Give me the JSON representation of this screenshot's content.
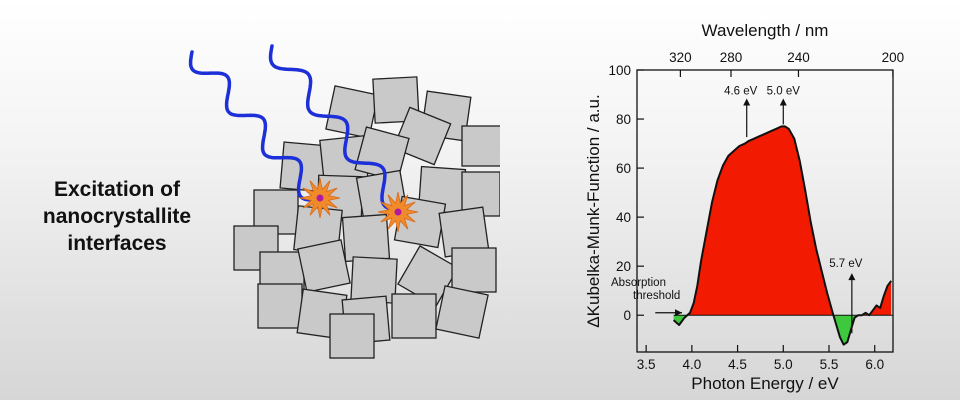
{
  "left_panel": {
    "caption_lines": [
      "Excitation of",
      "nanocrystallite",
      "interfaces"
    ]
  },
  "colors": {
    "positive_fill": "#f21a00",
    "negative_fill": "#3ec83e",
    "photon_wave": "#1c2fd8",
    "crystal_fill": "#c9c9c9",
    "crystal_stroke": "#222222",
    "spark": "#f08a2a"
  },
  "chart_data": {
    "type": "area",
    "title": "",
    "xlabel": "Photon Energy / eV",
    "ylabel": "ΔKubelka-Munk-Function / a.u.",
    "x2label": "Wavelength / nm",
    "xlim": [
      3.4,
      6.2
    ],
    "ylim": [
      -15,
      100
    ],
    "x_ticks": [
      3.5,
      4.0,
      4.5,
      5.0,
      5.5,
      6.0
    ],
    "x_tick_labels": [
      "3.5",
      "4.0",
      "4.5",
      "5.0",
      "5.5",
      "6.0"
    ],
    "y_ticks": [
      0,
      20,
      40,
      60,
      80,
      100
    ],
    "y_tick_labels": [
      "0",
      "20",
      "40",
      "60",
      "80",
      "100"
    ],
    "top_ticks": [
      320,
      280,
      240,
      200
    ],
    "top_tick_labels": [
      "320",
      "280",
      "240",
      "200"
    ],
    "grid": false,
    "series": [
      {
        "x": [
          3.8,
          3.86,
          3.92,
          3.98,
          4.02,
          4.06,
          4.1,
          4.16,
          4.22,
          4.28,
          4.34,
          4.4,
          4.46,
          4.52,
          4.58,
          4.62,
          4.68,
          4.74,
          4.8,
          4.86,
          4.92,
          4.98,
          5.02,
          5.06,
          5.12,
          5.18,
          5.24,
          5.3,
          5.36,
          5.42,
          5.48,
          5.54,
          5.58,
          5.62,
          5.66,
          5.7,
          5.74,
          5.78,
          5.82,
          5.86,
          5.9,
          5.94,
          5.98,
          6.02,
          6.06,
          6.1,
          6.14,
          6.18
        ],
        "y": [
          -2,
          -4,
          -1,
          1,
          5,
          12,
          22,
          34,
          46,
          55,
          61,
          65,
          67,
          69,
          70,
          71,
          72,
          73,
          74,
          75,
          76,
          77,
          77,
          76,
          72,
          63,
          51,
          38,
          27,
          18,
          9,
          1,
          -4,
          -9,
          -12,
          -11,
          -6,
          -1,
          0,
          0,
          1,
          0,
          2,
          4,
          3,
          8,
          12,
          14
        ]
      }
    ],
    "annotations": [
      {
        "text": "4.6 eV",
        "x": 4.6,
        "y": 71
      },
      {
        "text": "5.0 eV",
        "x": 5.0,
        "y": 77
      },
      {
        "text": "5.7 eV",
        "x": 5.75,
        "y": 18
      },
      {
        "text": "Absorption threshold",
        "lines": [
          "Absorption",
          "threshold"
        ],
        "x": 3.98,
        "y": 1
      }
    ]
  }
}
